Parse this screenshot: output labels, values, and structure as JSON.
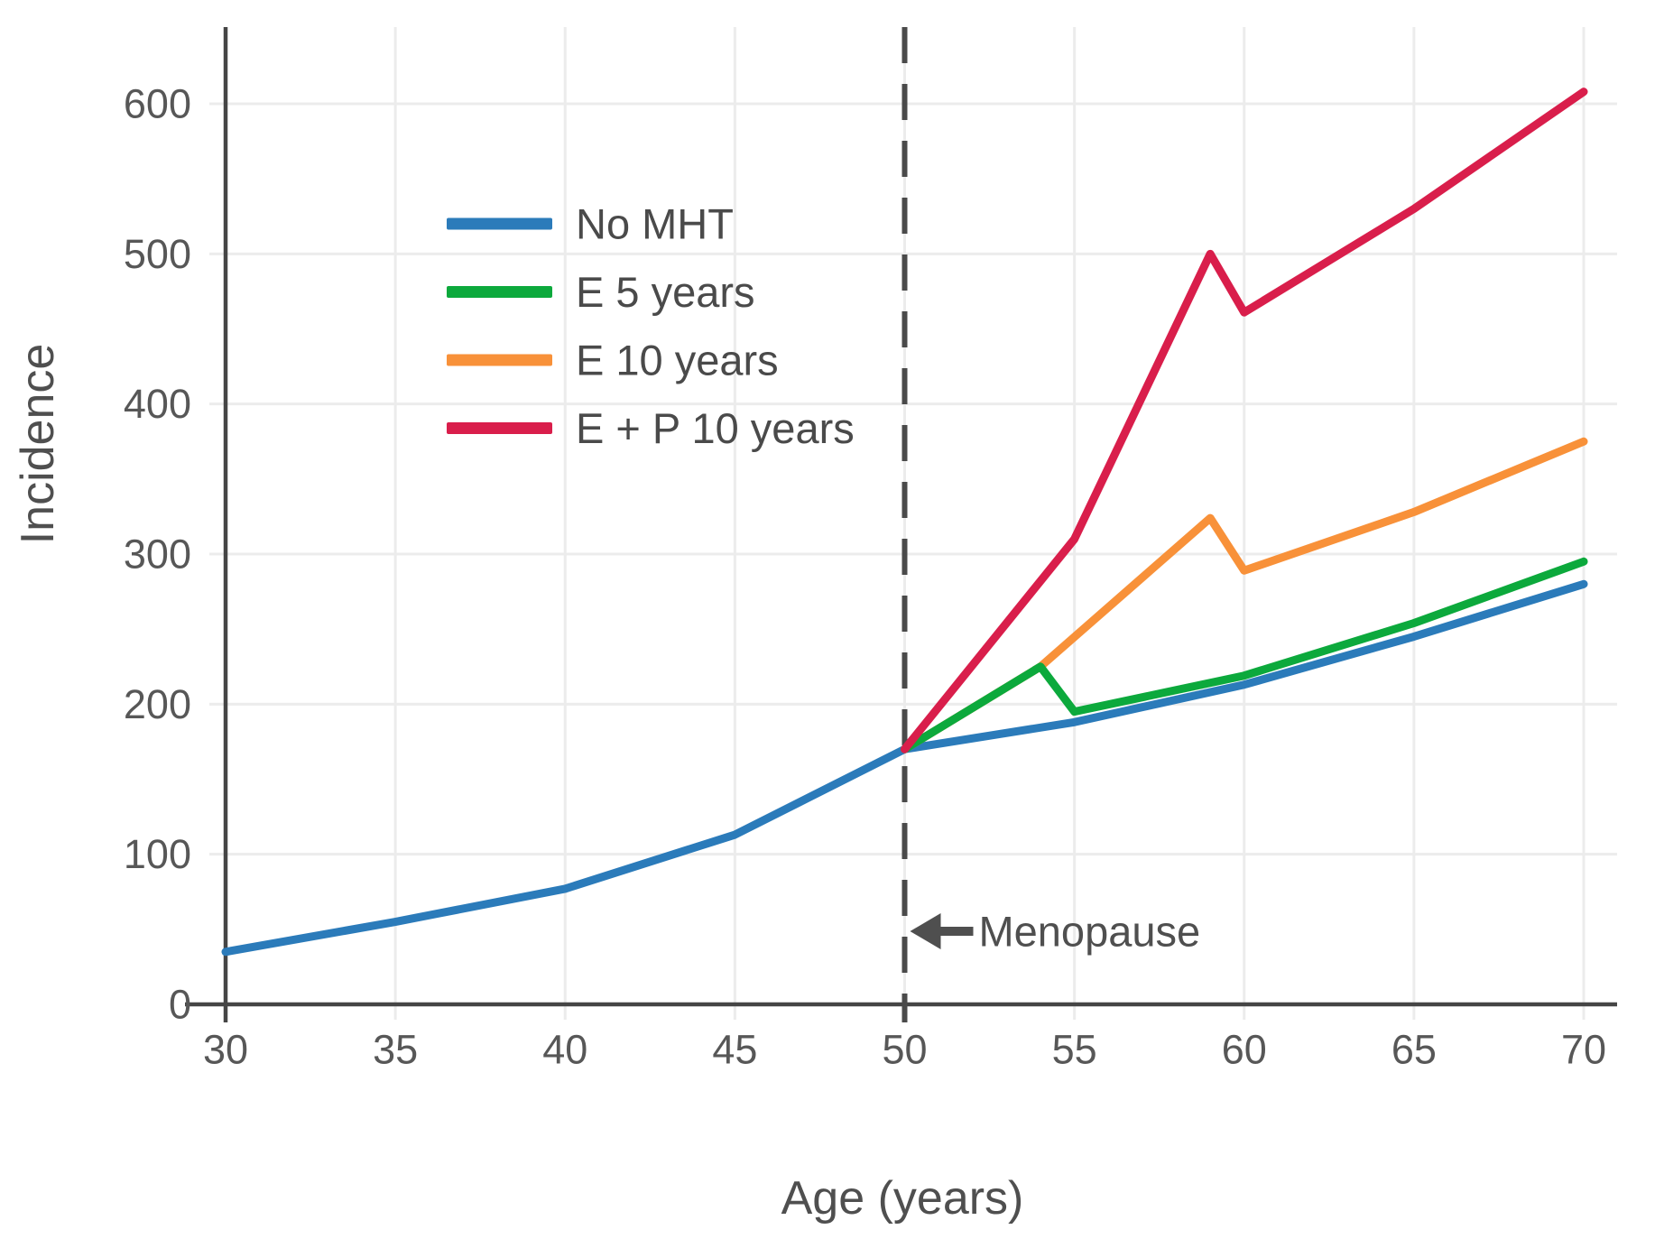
{
  "chart_data": {
    "type": "line",
    "title": "",
    "xlabel": "Age (years)",
    "ylabel": "Incidence",
    "xlim": [
      30,
      70
    ],
    "ylim": [
      0,
      650
    ],
    "x_ticks": [
      "30",
      "35",
      "40",
      "45",
      "50",
      "55",
      "60",
      "65",
      "70"
    ],
    "x_tick_values": [
      30,
      35,
      40,
      45,
      50,
      55,
      60,
      65,
      70
    ],
    "y_ticks": [
      "0",
      "100",
      "200",
      "300",
      "400",
      "500",
      "600"
    ],
    "y_tick_values": [
      0,
      100,
      200,
      300,
      400,
      500,
      600
    ],
    "grid": true,
    "legend_position": "upper-left-inside",
    "series": [
      {
        "name": "No MHT",
        "color": "#2B7BBA",
        "points": [
          [
            30,
            35
          ],
          [
            35,
            55
          ],
          [
            40,
            77
          ],
          [
            45,
            113
          ],
          [
            50,
            170
          ],
          [
            55,
            188
          ],
          [
            60,
            213
          ],
          [
            65,
            245
          ],
          [
            70,
            280
          ]
        ]
      },
      {
        "name": "E 10 years",
        "color": "#F89139",
        "points": [
          [
            50,
            170
          ],
          [
            54,
            225
          ],
          [
            59,
            324
          ],
          [
            60,
            289
          ],
          [
            65,
            328
          ],
          [
            70,
            375
          ]
        ]
      },
      {
        "name": "E 5 years",
        "color": "#0CA93C",
        "points": [
          [
            50,
            170
          ],
          [
            54,
            225
          ],
          [
            55,
            195
          ],
          [
            60,
            219
          ],
          [
            65,
            254
          ],
          [
            70,
            295
          ]
        ]
      },
      {
        "name": "E + P 10 years",
        "color": "#D91E4B",
        "points": [
          [
            50,
            170
          ],
          [
            55,
            310
          ],
          [
            59,
            500
          ],
          [
            60,
            461
          ],
          [
            65,
            530
          ],
          [
            70,
            608
          ]
        ]
      }
    ],
    "legend_order": [
      0,
      2,
      1,
      3
    ],
    "annotation": {
      "label": "Menopause",
      "x": 50,
      "arrow": "left"
    }
  },
  "colors": {
    "background": "#FFFFFF",
    "axis": "#454545",
    "grid": "#ECECEC",
    "tick_label": "#575757",
    "axis_label": "#4F4F4F",
    "legend_text": "#4A4A4A",
    "dashed_line": "#4A4A4A",
    "annotation": "#4F4F4F"
  }
}
